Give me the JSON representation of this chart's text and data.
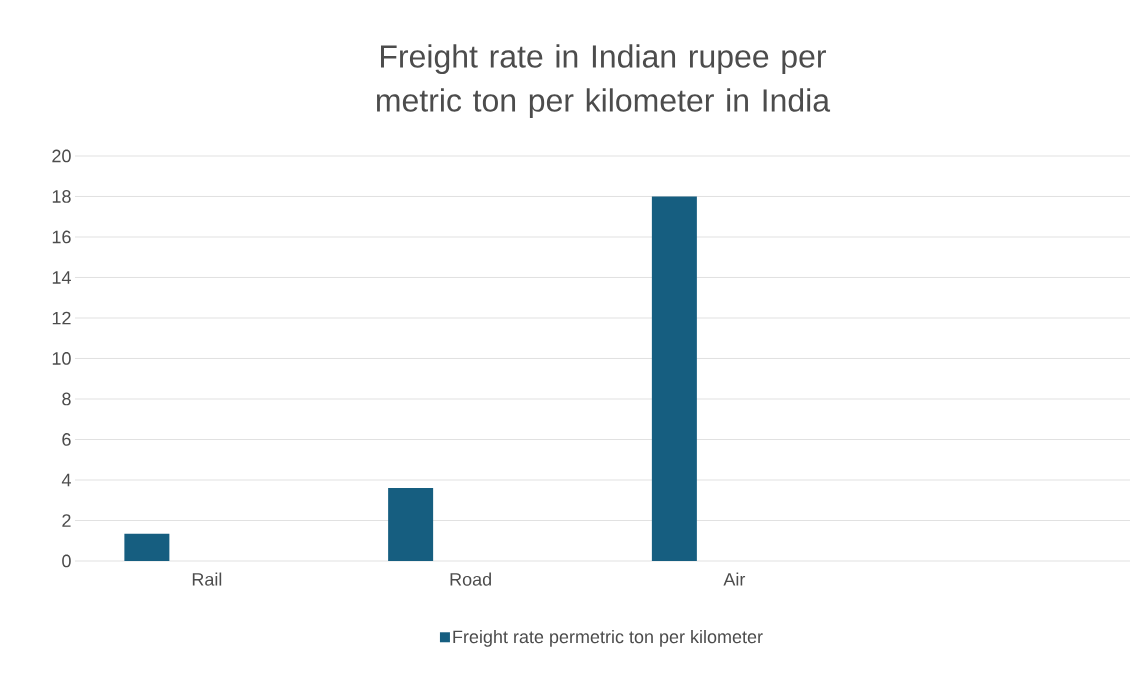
{
  "chart_data": {
    "type": "bar",
    "title": "Freight rate in Indian rupee per metric ton per kilometer in India",
    "categories": [
      "Rail",
      "Road",
      "Air",
      null
    ],
    "series": [
      {
        "name": "Freight rate permetric ton per kilometer",
        "color": "#165e80",
        "values": [
          1.35,
          3.6,
          18,
          null
        ]
      }
    ],
    "ylim": [
      0,
      20
    ],
    "yticks": [
      0,
      2,
      4,
      6,
      8,
      10,
      12,
      14,
      16,
      18,
      20
    ],
    "grid": "y",
    "legend": "bottom"
  }
}
